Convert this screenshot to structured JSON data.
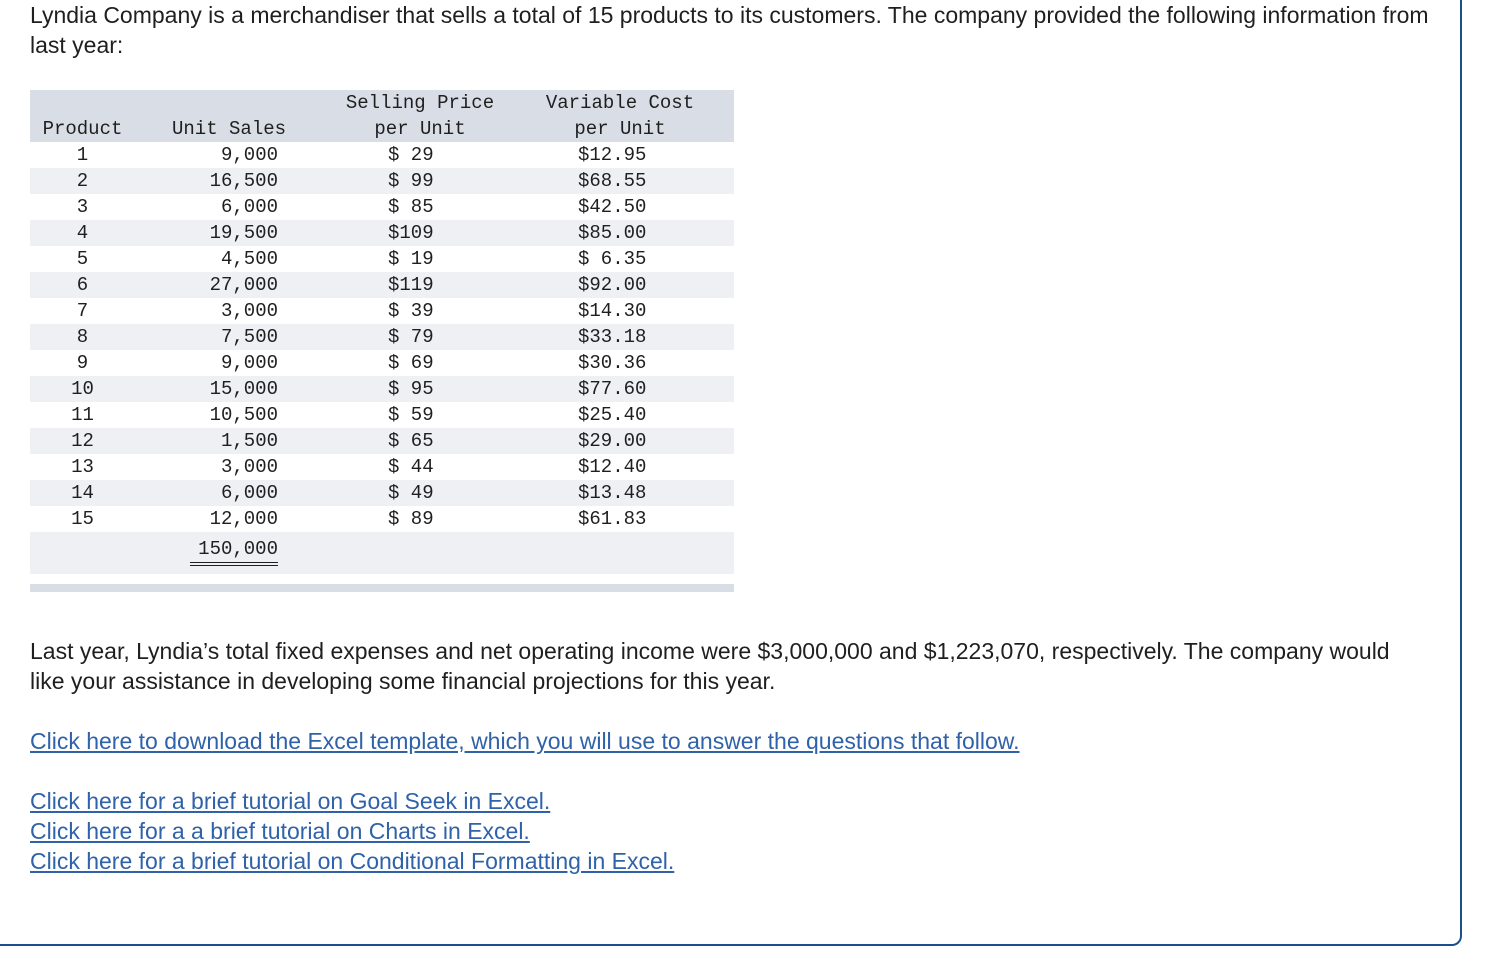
{
  "intro_text": "Lyndia Company is a merchandiser that sells a total of 15 products to its customers. The company provided the following information from last year:",
  "table": {
    "headers": {
      "product": "Product",
      "unit_sales": "Unit Sales",
      "price_l1": "Selling Price",
      "price_l2": "per Unit",
      "var_l1": "Variable Cost",
      "var_l2": "per Unit"
    },
    "rows": [
      {
        "product": "1",
        "units": "9,000",
        "price": "$ 29",
        "var": "$12.95"
      },
      {
        "product": "2",
        "units": "16,500",
        "price": "$ 99",
        "var": "$68.55"
      },
      {
        "product": "3",
        "units": "6,000",
        "price": "$ 85",
        "var": "$42.50"
      },
      {
        "product": "4",
        "units": "19,500",
        "price": "$109",
        "var": "$85.00"
      },
      {
        "product": "5",
        "units": "4,500",
        "price": "$ 19",
        "var": "$ 6.35"
      },
      {
        "product": "6",
        "units": "27,000",
        "price": "$119",
        "var": "$92.00"
      },
      {
        "product": "7",
        "units": "3,000",
        "price": "$ 39",
        "var": "$14.30"
      },
      {
        "product": "8",
        "units": "7,500",
        "price": "$ 79",
        "var": "$33.18"
      },
      {
        "product": "9",
        "units": "9,000",
        "price": "$ 69",
        "var": "$30.36"
      },
      {
        "product": "10",
        "units": "15,000",
        "price": "$ 95",
        "var": "$77.60"
      },
      {
        "product": "11",
        "units": "10,500",
        "price": "$ 59",
        "var": "$25.40"
      },
      {
        "product": "12",
        "units": "1,500",
        "price": "$ 65",
        "var": "$29.00"
      },
      {
        "product": "13",
        "units": "3,000",
        "price": "$ 44",
        "var": "$12.40"
      },
      {
        "product": "14",
        "units": "6,000",
        "price": "$ 49",
        "var": "$13.48"
      },
      {
        "product": "15",
        "units": "12,000",
        "price": "$ 89",
        "var": "$61.83"
      }
    ],
    "total_units": "150,000"
  },
  "paragraph": "Last year, Lyndia’s total fixed expenses and net operating income were $3,000,000 and $1,223,070, respectively. The company would like your assistance in developing some financial projections for this year.",
  "links": {
    "excel_template": "Click here to download the Excel template, which you will use to answer the questions that follow.",
    "goal_seek": "Click here for a brief tutorial on Goal Seek in Excel.",
    "charts": "Click here for a a brief tutorial on Charts in Excel.",
    "conditional_formatting": "Click here for a brief tutorial on Conditional Formatting in Excel."
  },
  "colors": {
    "link": "#2f62a8",
    "table_header_bg": "#d9dde6",
    "table_stripe_bg": "#eef0f4",
    "frame_border": "#1b4f8a"
  }
}
